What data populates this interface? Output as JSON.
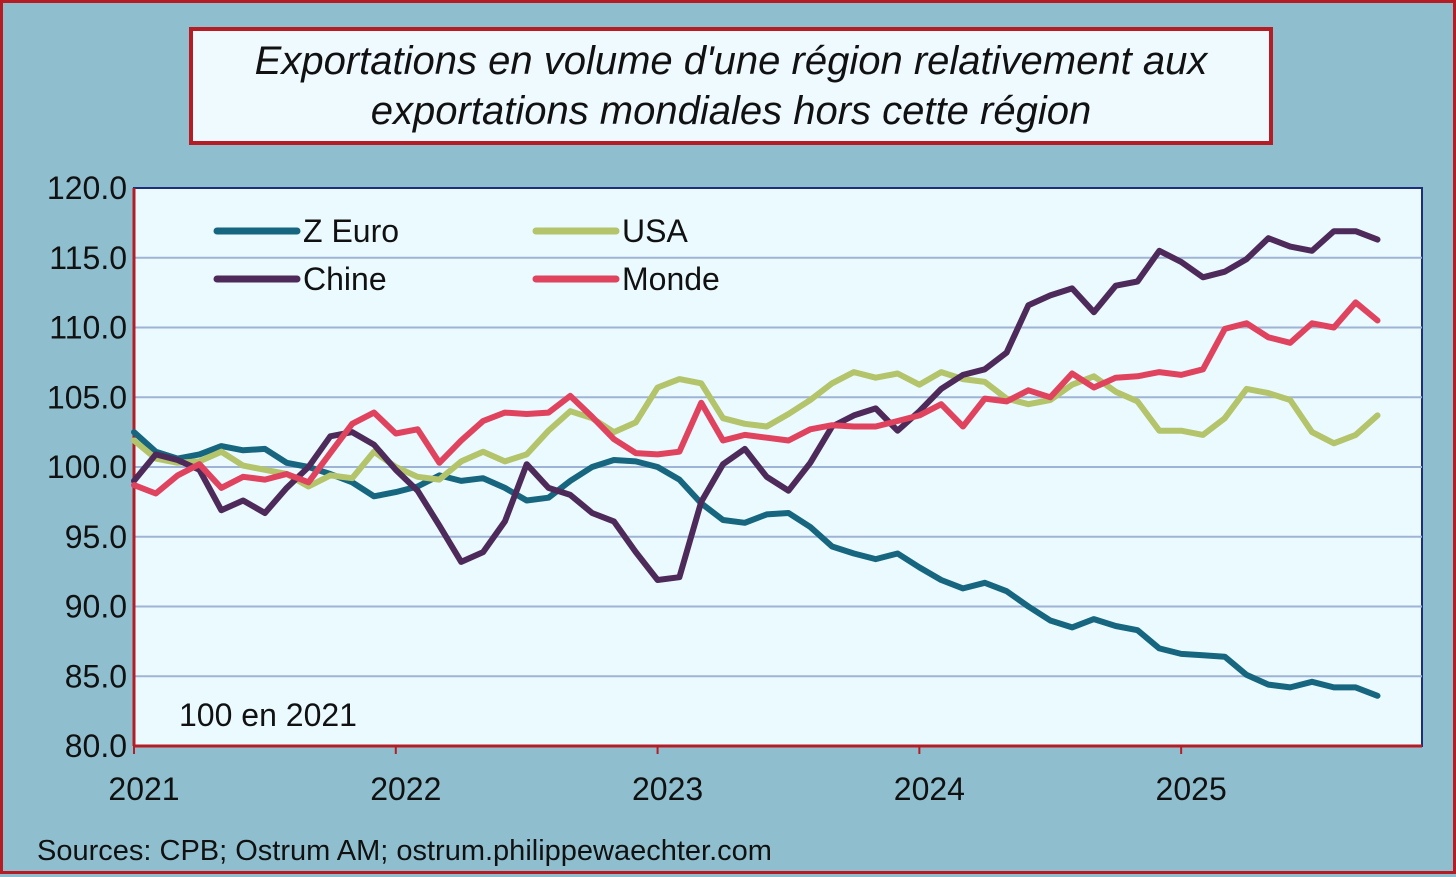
{
  "chart_data": {
    "type": "line",
    "title_lines": [
      "Exportations en volume d'une région relativement aux",
      "exportations mondiales hors cette région"
    ],
    "xlabel": "",
    "ylabel": "",
    "ylim": [
      80,
      120
    ],
    "yticks": [
      "80.0",
      "85.0",
      "90.0",
      "95.0",
      "100.0",
      "105.0",
      "110.0",
      "115.0",
      "120.0"
    ],
    "x_start": 2021.0,
    "x_step_months": 1,
    "xlim": [
      2021.0,
      2025.92
    ],
    "xticks": [
      "2021",
      "2022",
      "2023",
      "2024",
      "2025"
    ],
    "grid": true,
    "legend_position": "top-left",
    "annotation": "100 en 2021",
    "series": [
      {
        "name": "Z Euro",
        "color": "#176680",
        "values": [
          102.5,
          101.1,
          100.6,
          100.9,
          101.5,
          101.2,
          101.3,
          100.3,
          100.0,
          99.5,
          98.9,
          97.9,
          98.2,
          98.6,
          99.4,
          99.0,
          99.2,
          98.5,
          97.6,
          97.8,
          99.0,
          100.0,
          100.5,
          100.4,
          100.0,
          99.1,
          97.4,
          96.2,
          96.0,
          96.6,
          96.7,
          95.7,
          94.3,
          93.8,
          93.4,
          93.8,
          92.8,
          91.9,
          91.3,
          91.7,
          91.1,
          90.0,
          89.0,
          88.5,
          89.1,
          88.6,
          88.3,
          87.0,
          86.6,
          86.5,
          86.4,
          85.1,
          84.4,
          84.2,
          84.6,
          84.2,
          84.2,
          83.6
        ]
      },
      {
        "name": "USA",
        "color": "#b4c46a",
        "values": [
          101.9,
          100.6,
          100.3,
          100.4,
          101.1,
          100.1,
          99.8,
          99.5,
          98.6,
          99.4,
          99.2,
          101.1,
          100.0,
          99.3,
          99.1,
          100.4,
          101.1,
          100.4,
          100.9,
          102.6,
          104.0,
          103.5,
          102.5,
          103.2,
          105.7,
          106.3,
          106.0,
          103.5,
          103.1,
          102.9,
          103.8,
          104.8,
          106.0,
          106.8,
          106.4,
          106.7,
          105.9,
          106.8,
          106.3,
          106.1,
          104.9,
          104.5,
          104.8,
          105.9,
          106.5,
          105.4,
          104.7,
          102.6,
          102.6,
          102.3,
          103.5,
          105.6,
          105.3,
          104.8,
          102.5,
          101.7,
          102.3,
          103.7
        ]
      },
      {
        "name": "Chine",
        "color": "#4e2a5a",
        "values": [
          99.0,
          100.9,
          100.5,
          99.8,
          96.9,
          97.6,
          96.7,
          98.5,
          100.0,
          102.2,
          102.5,
          101.6,
          99.8,
          98.3,
          95.8,
          93.2,
          93.9,
          96.1,
          100.2,
          98.5,
          98.0,
          96.7,
          96.1,
          93.9,
          91.9,
          92.1,
          97.5,
          100.2,
          101.3,
          99.3,
          98.3,
          100.3,
          102.9,
          103.7,
          104.2,
          102.6,
          104.0,
          105.6,
          106.6,
          107.0,
          108.2,
          111.6,
          112.3,
          112.8,
          111.1,
          113.0,
          113.3,
          115.5,
          114.7,
          113.6,
          114.0,
          114.9,
          116.4,
          115.8,
          115.5,
          116.9,
          116.9,
          116.3
        ]
      },
      {
        "name": "Monde",
        "color": "#e0435e",
        "values": [
          98.7,
          98.1,
          99.4,
          100.2,
          98.5,
          99.3,
          99.1,
          99.5,
          98.9,
          101.0,
          103.1,
          103.9,
          102.4,
          102.7,
          100.3,
          101.9,
          103.3,
          103.9,
          103.8,
          103.9,
          105.1,
          103.6,
          102.0,
          101.0,
          100.9,
          101.1,
          104.6,
          101.9,
          102.3,
          102.1,
          101.9,
          102.7,
          103.0,
          102.9,
          102.9,
          103.3,
          103.7,
          104.5,
          102.9,
          104.9,
          104.7,
          105.5,
          105.0,
          106.7,
          105.7,
          106.4,
          106.5,
          106.8,
          106.6,
          107.0,
          109.9,
          110.3,
          109.3,
          108.9,
          110.3,
          110.0,
          111.8,
          110.5
        ]
      }
    ]
  },
  "source": "Sources: CPB; Ostrum AM; ostrum.philippewaechter.com"
}
